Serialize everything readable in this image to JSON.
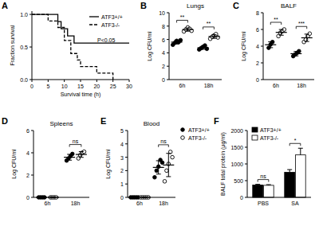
{
  "chart_data": [
    {
      "panel": "A",
      "type": "step",
      "xlabel": "Survival time (h)",
      "ylabel": "Fraction survival",
      "xlim": [
        0,
        30
      ],
      "xticks": [
        0,
        5,
        10,
        15,
        20,
        25,
        30
      ],
      "ylim": [
        0,
        1.05
      ],
      "yticks": [
        {
          "value": 0,
          "label": "0.0"
        },
        {
          "value": 0.5,
          "label": "0.5"
        },
        {
          "value": 1,
          "label": "1.0"
        }
      ],
      "legend": "upper right",
      "annotations": [
        "P<0.05"
      ],
      "series": [
        {
          "name": "ATF3+/+",
          "color": "#000000",
          "line_style": "solid",
          "x": [
            0,
            8,
            9,
            11,
            13,
            30
          ],
          "values": [
            1,
            0.89,
            0.78,
            0.67,
            0.56,
            0.56
          ]
        },
        {
          "name": "ATF3-/-",
          "color": "#000000",
          "line_style": "dashed",
          "x": [
            0,
            5,
            8,
            10,
            12,
            14,
            15,
            20,
            25
          ],
          "values": [
            1,
            0.9,
            0.8,
            0.6,
            0.4,
            0.3,
            0.2,
            0.1,
            0
          ]
        }
      ]
    },
    {
      "panel": "B",
      "type": "strip",
      "title": "Lungs",
      "ylabel": "Log CFU/ml",
      "categories": [
        "6h",
        "18h"
      ],
      "ylim": [
        0,
        10
      ],
      "yticks": [
        0,
        2,
        4,
        6,
        8,
        10
      ],
      "significance": [
        "**",
        "**"
      ],
      "series": [
        {
          "color": "#000000",
          "marker": "filled",
          "values": [
            [
              5.2,
              5.5,
              5.8,
              5.6,
              5.9
            ],
            [
              4.5,
              4.7,
              4.9,
              5.1,
              4.6
            ]
          ],
          "mean": [
            5.6,
            4.76
          ],
          "error": [
            0.28,
            0.23
          ]
        },
        {
          "color": "#000000",
          "marker": "open",
          "values": [
            [
              7.2,
              7.5,
              7.8,
              7.6,
              7.3
            ],
            [
              6.1,
              6.4,
              6.6,
              6.8,
              6.3
            ]
          ],
          "mean": [
            7.48,
            6.44
          ],
          "error": [
            0.24,
            0.27
          ]
        }
      ]
    },
    {
      "panel": "C",
      "type": "strip",
      "title": "BALF",
      "ylabel": "Log CFU/ml",
      "categories": [
        "6h",
        "18h"
      ],
      "ylim": [
        0,
        8
      ],
      "yticks": [
        0,
        2,
        4,
        6,
        8
      ],
      "significance": [
        "**",
        "***"
      ],
      "series": [
        {
          "color": "#000000",
          "marker": "filled",
          "values": [
            [
              3.8,
              4.2,
              4.5
            ],
            [
              2.8,
              3.0,
              3.2,
              3.4
            ]
          ],
          "mean": [
            4.17,
            3.1
          ],
          "error": [
            0.35,
            0.26
          ]
        },
        {
          "color": "#000000",
          "marker": "open",
          "values": [
            [
              5.2,
              5.6,
              5.8,
              6.0
            ],
            [
              4.5,
              4.8,
              5.2,
              5.5
            ]
          ],
          "mean": [
            5.65,
            5.0
          ],
          "error": [
            0.34,
            0.44
          ]
        }
      ]
    },
    {
      "panel": "D",
      "type": "strip",
      "title": "Spleens",
      "ylabel": "Log CFU/ml",
      "categories": [
        "6h",
        "18h"
      ],
      "ylim": [
        0,
        6
      ],
      "yticks": [
        0,
        2,
        4,
        6
      ],
      "significance": [
        null,
        "ns"
      ],
      "series": [
        {
          "color": "#000000",
          "marker": "filled",
          "values": [
            [
              0,
              0,
              0,
              0
            ],
            [
              3.3,
              3.5,
              3.7,
              3.9
            ]
          ],
          "mean": [
            0,
            3.6
          ],
          "error": [
            0,
            0.26
          ]
        },
        {
          "color": "#000000",
          "marker": "open",
          "values": [
            [
              0,
              0,
              0,
              0
            ],
            [
              3.5,
              3.8,
              4.0,
              4.1
            ]
          ],
          "mean": [
            0,
            3.85
          ],
          "error": [
            0,
            0.26
          ]
        }
      ]
    },
    {
      "panel": "E",
      "type": "strip",
      "title": "Blood",
      "ylabel": "Log CFU/ml",
      "categories": [
        "6h",
        "18h"
      ],
      "ylim": [
        0,
        5
      ],
      "yticks": [
        0,
        1,
        2,
        3,
        4,
        5
      ],
      "significance": [
        null,
        "ns"
      ],
      "legend": "upper right",
      "series": [
        {
          "name": "ATF3+/+",
          "color": "#000000",
          "marker": "filled",
          "values": [
            [
              0,
              0,
              0,
              0,
              0
            ],
            [
              1.5,
              2.0,
              2.3,
              2.8,
              2.6
            ]
          ],
          "mean": [
            0,
            2.24
          ],
          "error": [
            0,
            0.5
          ]
        },
        {
          "name": "ATF3-/-",
          "color": "#000000",
          "marker": "open",
          "values": [
            [
              0,
              0,
              0,
              0,
              0
            ],
            [
              1.2,
              2.0,
              2.5,
              3.4,
              3.0
            ]
          ],
          "mean": [
            0,
            2.42
          ],
          "error": [
            0,
            0.87
          ]
        }
      ]
    },
    {
      "panel": "F",
      "type": "bar",
      "ylabel": "BALF total protein (μg/ml)",
      "categories": [
        "PBS",
        "SA"
      ],
      "ylim": [
        0,
        2000
      ],
      "yticks": [
        0,
        500,
        1000,
        1500,
        2000
      ],
      "significance": [
        "ns",
        "*"
      ],
      "legend": "upper left",
      "series": [
        {
          "name": "ATF3+/+",
          "color": "#000000",
          "values": [
            370,
            750
          ],
          "error": [
            20,
            80
          ]
        },
        {
          "name": "ATF3-/-",
          "color": "#ffffff",
          "values": [
            360,
            1270
          ],
          "error": [
            20,
            200
          ]
        }
      ]
    }
  ]
}
